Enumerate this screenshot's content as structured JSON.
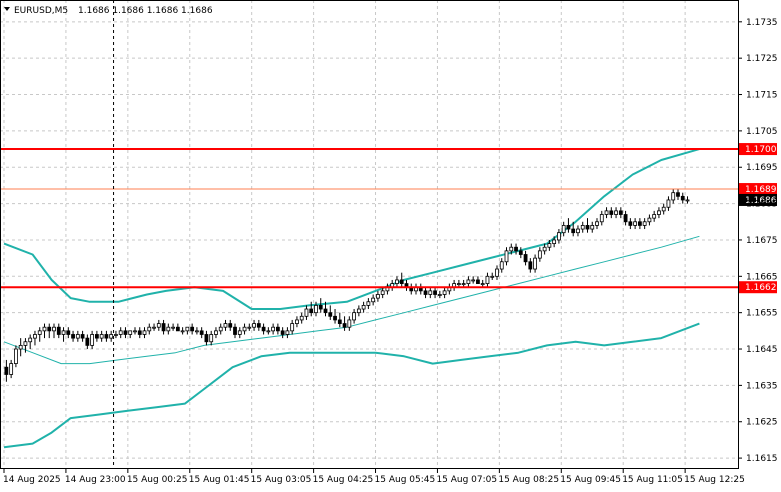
{
  "header": {
    "symbol": "EURUSD,M5",
    "ohlc": "1.1686 1.1686 1.1686 1.1686"
  },
  "chart_data": {
    "type": "candlestick",
    "ylim": [
      1.1612,
      1.1741
    ],
    "xlim": [
      0,
      152
    ],
    "grid": true,
    "y_ticks": [
      "1.1735",
      "1.1725",
      "1.1715",
      "1.1705",
      "1.1695",
      "1.1685",
      "1.1675",
      "1.1665",
      "1.1655",
      "1.1645",
      "1.1635",
      "1.1625",
      "1.1615"
    ],
    "x_ticks": [
      {
        "label": "14 Aug 2025",
        "bar": 0
      },
      {
        "label": "14 Aug 23:00",
        "bar": 13
      },
      {
        "label": "15 Aug 00:25",
        "bar": 26
      },
      {
        "label": "15 Aug 01:45",
        "bar": 39
      },
      {
        "label": "15 Aug 03:05",
        "bar": 52
      },
      {
        "label": "15 Aug 04:25",
        "bar": 65
      },
      {
        "label": "15 Aug 05:45",
        "bar": 78
      },
      {
        "label": "15 Aug 07:05",
        "bar": 91
      },
      {
        "label": "15 Aug 08:25",
        "bar": 104
      },
      {
        "label": "15 Aug 09:45",
        "bar": 117
      },
      {
        "label": "15 Aug 11:05",
        "bar": 130
      },
      {
        "label": "15 Aug 12:25",
        "bar": 143
      }
    ],
    "vertical_marker_bar": 23,
    "horizontal_levels": [
      {
        "value": 1.17,
        "label": "1.1700",
        "color": "#ff0000"
      },
      {
        "value": 1.1689,
        "label": "1.1689",
        "color": "#ff0000"
      },
      {
        "value": 1.1662,
        "label": "1.1662",
        "color": "#ff0000"
      }
    ],
    "current_price": {
      "value": 1.1686,
      "label": "1.1686",
      "color": "#000000"
    },
    "candles": [
      [
        1.164,
        1.1642,
        1.1636,
        1.1638
      ],
      [
        1.1638,
        1.1642,
        1.1637,
        1.1641
      ],
      [
        1.1641,
        1.1646,
        1.164,
        1.1645
      ],
      [
        1.1645,
        1.1648,
        1.1643,
        1.1646
      ],
      [
        1.1646,
        1.1648,
        1.1644,
        1.1647
      ],
      [
        1.1647,
        1.1649,
        1.1645,
        1.1648
      ],
      [
        1.1648,
        1.165,
        1.1646,
        1.1649
      ],
      [
        1.1649,
        1.1651,
        1.1647,
        1.165
      ],
      [
        1.165,
        1.1652,
        1.1648,
        1.1651
      ],
      [
        1.1651,
        1.1652,
        1.1648,
        1.165
      ],
      [
        1.165,
        1.1652,
        1.1648,
        1.1651
      ],
      [
        1.1651,
        1.1652,
        1.1648,
        1.1649
      ],
      [
        1.1649,
        1.1651,
        1.1647,
        1.165
      ],
      [
        1.165,
        1.1651,
        1.1648,
        1.1649
      ],
      [
        1.1649,
        1.165,
        1.1647,
        1.1648
      ],
      [
        1.1648,
        1.165,
        1.1647,
        1.1649
      ],
      [
        1.1649,
        1.165,
        1.1647,
        1.1648
      ],
      [
        1.1648,
        1.1649,
        1.1645,
        1.1646
      ],
      [
        1.1646,
        1.165,
        1.1645,
        1.1649
      ],
      [
        1.1649,
        1.165,
        1.1647,
        1.1648
      ],
      [
        1.1648,
        1.165,
        1.1647,
        1.1649
      ],
      [
        1.1649,
        1.165,
        1.1647,
        1.1648
      ],
      [
        1.1648,
        1.165,
        1.1647,
        1.1649
      ],
      [
        1.1649,
        1.165,
        1.1648,
        1.1649
      ],
      [
        1.1649,
        1.1651,
        1.1648,
        1.165
      ],
      [
        1.165,
        1.1651,
        1.1648,
        1.1649
      ],
      [
        1.1649,
        1.165,
        1.1648,
        1.165
      ],
      [
        1.165,
        1.1651,
        1.1649,
        1.165
      ],
      [
        1.165,
        1.1651,
        1.1648,
        1.1649
      ],
      [
        1.1649,
        1.1651,
        1.1648,
        1.165
      ],
      [
        1.165,
        1.1652,
        1.1649,
        1.1651
      ],
      [
        1.1651,
        1.1652,
        1.165,
        1.1651
      ],
      [
        1.1651,
        1.1653,
        1.165,
        1.1652
      ],
      [
        1.1652,
        1.1653,
        1.1649,
        1.165
      ],
      [
        1.165,
        1.1652,
        1.1649,
        1.1651
      ],
      [
        1.1651,
        1.1652,
        1.165,
        1.1651
      ],
      [
        1.1651,
        1.1652,
        1.165,
        1.165
      ],
      [
        1.165,
        1.1651,
        1.1649,
        1.165
      ],
      [
        1.165,
        1.1651,
        1.1649,
        1.1651
      ],
      [
        1.1651,
        1.1652,
        1.1649,
        1.165
      ],
      [
        1.165,
        1.1651,
        1.1649,
        1.165
      ],
      [
        1.165,
        1.1651,
        1.1648,
        1.1649
      ],
      [
        1.1649,
        1.165,
        1.1646,
        1.1647
      ],
      [
        1.1647,
        1.165,
        1.1646,
        1.1649
      ],
      [
        1.1649,
        1.1651,
        1.1648,
        1.165
      ],
      [
        1.165,
        1.1652,
        1.1649,
        1.1651
      ],
      [
        1.1651,
        1.1653,
        1.165,
        1.1652
      ],
      [
        1.1652,
        1.1653,
        1.165,
        1.1651
      ],
      [
        1.1651,
        1.1652,
        1.1648,
        1.1649
      ],
      [
        1.1649,
        1.1651,
        1.1648,
        1.165
      ],
      [
        1.165,
        1.1652,
        1.1649,
        1.1651
      ],
      [
        1.1651,
        1.1652,
        1.165,
        1.1651
      ],
      [
        1.1651,
        1.1653,
        1.165,
        1.1652
      ],
      [
        1.1652,
        1.1653,
        1.165,
        1.1651
      ],
      [
        1.1651,
        1.1652,
        1.1649,
        1.165
      ],
      [
        1.165,
        1.1651,
        1.1649,
        1.165
      ],
      [
        1.165,
        1.1652,
        1.1649,
        1.1651
      ],
      [
        1.1651,
        1.1652,
        1.1649,
        1.165
      ],
      [
        1.165,
        1.1651,
        1.1648,
        1.1649
      ],
      [
        1.1649,
        1.1651,
        1.1648,
        1.165
      ],
      [
        1.165,
        1.1653,
        1.1649,
        1.1652
      ],
      [
        1.1652,
        1.1654,
        1.1651,
        1.1653
      ],
      [
        1.1653,
        1.1655,
        1.1652,
        1.1654
      ],
      [
        1.1654,
        1.1657,
        1.1653,
        1.1656
      ],
      [
        1.1656,
        1.1658,
        1.1654,
        1.1655
      ],
      [
        1.1655,
        1.1658,
        1.1654,
        1.1657
      ],
      [
        1.1657,
        1.1659,
        1.1655,
        1.1656
      ],
      [
        1.1656,
        1.1658,
        1.1654,
        1.1655
      ],
      [
        1.1655,
        1.1657,
        1.1653,
        1.1654
      ],
      [
        1.1654,
        1.1656,
        1.1652,
        1.1653
      ],
      [
        1.1653,
        1.1655,
        1.1651,
        1.1652
      ],
      [
        1.1652,
        1.1654,
        1.165,
        1.1651
      ],
      [
        1.1651,
        1.1654,
        1.165,
        1.1653
      ],
      [
        1.1653,
        1.1656,
        1.1652,
        1.1655
      ],
      [
        1.1655,
        1.1657,
        1.1654,
        1.1656
      ],
      [
        1.1656,
        1.1658,
        1.1655,
        1.1657
      ],
      [
        1.1657,
        1.1659,
        1.1656,
        1.1658
      ],
      [
        1.1658,
        1.166,
        1.1657,
        1.1659
      ],
      [
        1.1659,
        1.1661,
        1.1658,
        1.166
      ],
      [
        1.166,
        1.1662,
        1.1659,
        1.1661
      ],
      [
        1.1661,
        1.1663,
        1.166,
        1.1662
      ],
      [
        1.1662,
        1.1664,
        1.1661,
        1.1663
      ],
      [
        1.1663,
        1.1665,
        1.1662,
        1.1664
      ],
      [
        1.1664,
        1.1666,
        1.1662,
        1.1663
      ],
      [
        1.1663,
        1.1664,
        1.1661,
        1.1662
      ],
      [
        1.1662,
        1.1663,
        1.166,
        1.1661
      ],
      [
        1.1661,
        1.1663,
        1.166,
        1.1662
      ],
      [
        1.1662,
        1.1663,
        1.166,
        1.1661
      ],
      [
        1.1661,
        1.1662,
        1.1659,
        1.166
      ],
      [
        1.166,
        1.1662,
        1.1659,
        1.1661
      ],
      [
        1.1661,
        1.1662,
        1.1659,
        1.166
      ],
      [
        1.166,
        1.1661,
        1.1659,
        1.166
      ],
      [
        1.166,
        1.1662,
        1.1659,
        1.1661
      ],
      [
        1.1661,
        1.1663,
        1.166,
        1.1662
      ],
      [
        1.1662,
        1.1664,
        1.1661,
        1.1663
      ],
      [
        1.1663,
        1.1664,
        1.1662,
        1.1663
      ],
      [
        1.1663,
        1.1664,
        1.1662,
        1.1663
      ],
      [
        1.1663,
        1.1665,
        1.1662,
        1.1664
      ],
      [
        1.1664,
        1.1665,
        1.1663,
        1.1664
      ],
      [
        1.1664,
        1.1665,
        1.1663,
        1.1663
      ],
      [
        1.1663,
        1.1664,
        1.1662,
        1.1663
      ],
      [
        1.1663,
        1.1666,
        1.1662,
        1.1665
      ],
      [
        1.1665,
        1.1666,
        1.1664,
        1.1665
      ],
      [
        1.1665,
        1.1668,
        1.1664,
        1.1667
      ],
      [
        1.1667,
        1.167,
        1.1666,
        1.1669
      ],
      [
        1.1669,
        1.1673,
        1.1668,
        1.1672
      ],
      [
        1.1672,
        1.1674,
        1.1671,
        1.1673
      ],
      [
        1.1673,
        1.1674,
        1.1671,
        1.1672
      ],
      [
        1.1672,
        1.1673,
        1.167,
        1.1671
      ],
      [
        1.1671,
        1.1672,
        1.1668,
        1.1669
      ],
      [
        1.1669,
        1.167,
        1.1666,
        1.1667
      ],
      [
        1.1667,
        1.1671,
        1.1666,
        1.167
      ],
      [
        1.167,
        1.1673,
        1.1669,
        1.1672
      ],
      [
        1.1672,
        1.1674,
        1.1671,
        1.1673
      ],
      [
        1.1673,
        1.1675,
        1.1672,
        1.1674
      ],
      [
        1.1674,
        1.1676,
        1.1673,
        1.1675
      ],
      [
        1.1675,
        1.1678,
        1.1674,
        1.1677
      ],
      [
        1.1677,
        1.168,
        1.1676,
        1.1679
      ],
      [
        1.1679,
        1.1681,
        1.1677,
        1.1678
      ],
      [
        1.1678,
        1.168,
        1.1676,
        1.1677
      ],
      [
        1.1677,
        1.1679,
        1.1676,
        1.1678
      ],
      [
        1.1678,
        1.168,
        1.1677,
        1.1679
      ],
      [
        1.1679,
        1.1681,
        1.1677,
        1.1678
      ],
      [
        1.1678,
        1.168,
        1.1677,
        1.1679
      ],
      [
        1.1679,
        1.1681,
        1.1678,
        1.168
      ],
      [
        1.168,
        1.1683,
        1.1679,
        1.1682
      ],
      [
        1.1682,
        1.1684,
        1.1681,
        1.1683
      ],
      [
        1.1683,
        1.1684,
        1.1681,
        1.1682
      ],
      [
        1.1682,
        1.1684,
        1.1681,
        1.1683
      ],
      [
        1.1683,
        1.1684,
        1.1681,
        1.1682
      ],
      [
        1.1682,
        1.1683,
        1.1679,
        1.168
      ],
      [
        1.168,
        1.1681,
        1.1678,
        1.1679
      ],
      [
        1.1679,
        1.1681,
        1.1678,
        1.168
      ],
      [
        1.168,
        1.1681,
        1.1678,
        1.1679
      ],
      [
        1.1679,
        1.1681,
        1.1678,
        1.168
      ],
      [
        1.168,
        1.1682,
        1.1679,
        1.1681
      ],
      [
        1.1681,
        1.1683,
        1.168,
        1.1682
      ],
      [
        1.1682,
        1.1684,
        1.1681,
        1.1683
      ],
      [
        1.1683,
        1.1685,
        1.1682,
        1.1684
      ],
      [
        1.1684,
        1.1687,
        1.1683,
        1.1686
      ],
      [
        1.1686,
        1.1689,
        1.1685,
        1.1688
      ],
      [
        1.1688,
        1.1689,
        1.1686,
        1.1687
      ],
      [
        1.1687,
        1.1688,
        1.1685,
        1.1686
      ],
      [
        1.1686,
        1.1687,
        1.1685,
        1.1686
      ]
    ],
    "series": [
      {
        "color": "#20b2aa",
        "width": 2,
        "points": [
          [
            0,
            1.1674
          ],
          [
            6,
            1.1671
          ],
          [
            10,
            1.1664
          ],
          [
            14,
            1.1659
          ],
          [
            18,
            1.1658
          ],
          [
            24,
            1.1658
          ],
          [
            30,
            1.166
          ],
          [
            34,
            1.1661
          ],
          [
            40,
            1.1662
          ],
          [
            46,
            1.1661
          ],
          [
            52,
            1.1656
          ],
          [
            58,
            1.1656
          ],
          [
            64,
            1.1657
          ],
          [
            72,
            1.1658
          ],
          [
            78,
            1.1661
          ],
          [
            84,
            1.1664
          ],
          [
            90,
            1.1666
          ],
          [
            96,
            1.1668
          ],
          [
            102,
            1.167
          ],
          [
            108,
            1.1672
          ],
          [
            114,
            1.1674
          ],
          [
            120,
            1.168
          ],
          [
            126,
            1.1687
          ],
          [
            132,
            1.1693
          ],
          [
            138,
            1.1697
          ],
          [
            146,
            1.17
          ]
        ]
      },
      {
        "color": "#20b2aa",
        "width": 1,
        "points": [
          [
            0,
            1.1647
          ],
          [
            6,
            1.1644
          ],
          [
            12,
            1.1641
          ],
          [
            18,
            1.1641
          ],
          [
            24,
            1.1642
          ],
          [
            30,
            1.1643
          ],
          [
            36,
            1.1644
          ],
          [
            42,
            1.1646
          ],
          [
            48,
            1.1647
          ],
          [
            54,
            1.1648
          ],
          [
            60,
            1.1649
          ],
          [
            66,
            1.165
          ],
          [
            72,
            1.1651
          ],
          [
            78,
            1.1653
          ],
          [
            84,
            1.1655
          ],
          [
            90,
            1.1657
          ],
          [
            96,
            1.1659
          ],
          [
            102,
            1.1661
          ],
          [
            108,
            1.1663
          ],
          [
            114,
            1.1665
          ],
          [
            120,
            1.1667
          ],
          [
            126,
            1.1669
          ],
          [
            132,
            1.1671
          ],
          [
            138,
            1.1673
          ],
          [
            146,
            1.1676
          ]
        ]
      },
      {
        "color": "#20b2aa",
        "width": 2,
        "points": [
          [
            0,
            1.1618
          ],
          [
            6,
            1.1619
          ],
          [
            10,
            1.1622
          ],
          [
            14,
            1.1626
          ],
          [
            20,
            1.1627
          ],
          [
            26,
            1.1628
          ],
          [
            32,
            1.1629
          ],
          [
            38,
            1.163
          ],
          [
            42,
            1.1634
          ],
          [
            48,
            1.164
          ],
          [
            54,
            1.1643
          ],
          [
            60,
            1.1644
          ],
          [
            66,
            1.1644
          ],
          [
            72,
            1.1644
          ],
          [
            78,
            1.1644
          ],
          [
            84,
            1.1643
          ],
          [
            90,
            1.1641
          ],
          [
            96,
            1.1642
          ],
          [
            102,
            1.1643
          ],
          [
            108,
            1.1644
          ],
          [
            114,
            1.1646
          ],
          [
            120,
            1.1647
          ],
          [
            126,
            1.1646
          ],
          [
            132,
            1.1647
          ],
          [
            138,
            1.1648
          ],
          [
            146,
            1.1652
          ]
        ]
      }
    ]
  }
}
